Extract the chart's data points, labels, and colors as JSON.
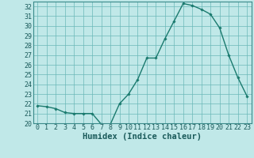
{
  "x": [
    0,
    1,
    2,
    3,
    4,
    5,
    6,
    7,
    8,
    9,
    10,
    11,
    12,
    13,
    14,
    15,
    16,
    17,
    18,
    19,
    20,
    21,
    22,
    23
  ],
  "y": [
    21.8,
    21.7,
    21.5,
    21.1,
    21.0,
    21.0,
    21.0,
    19.9,
    19.9,
    22.0,
    23.0,
    24.5,
    26.7,
    26.7,
    28.7,
    30.5,
    32.3,
    32.1,
    31.7,
    31.2,
    29.8,
    27.0,
    24.7,
    22.8
  ],
  "line_color": "#1a7a6e",
  "marker_color": "#1a7a6e",
  "bg_color": "#c0e8e8",
  "grid_color": "#6ab8b8",
  "xlabel": "Humidex (Indice chaleur)",
  "ylim": [
    20,
    32.5
  ],
  "xlim": [
    -0.5,
    23.5
  ],
  "yticks": [
    20,
    21,
    22,
    23,
    24,
    25,
    26,
    27,
    28,
    29,
    30,
    31,
    32
  ],
  "xticks": [
    0,
    1,
    2,
    3,
    4,
    5,
    6,
    7,
    8,
    9,
    10,
    11,
    12,
    13,
    14,
    15,
    16,
    17,
    18,
    19,
    20,
    21,
    22,
    23
  ],
  "tick_fontsize": 6.0,
  "xlabel_fontsize": 7.5
}
